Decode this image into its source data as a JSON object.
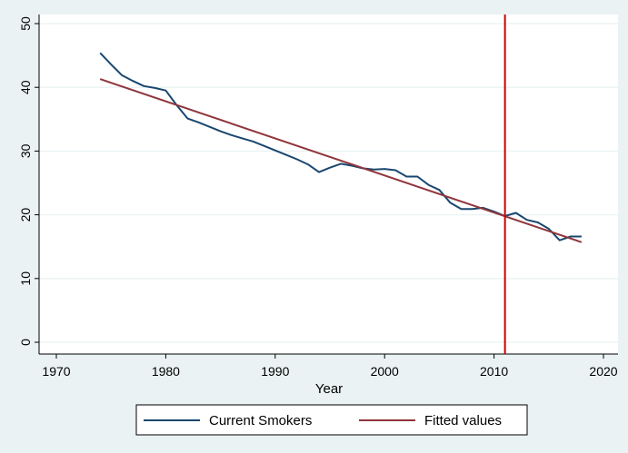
{
  "chart_data": {
    "type": "line",
    "xlabel": "Year",
    "ylabel": "",
    "xlim": [
      1970,
      2020
    ],
    "ylim": [
      0,
      50
    ],
    "xticks": [
      1970,
      1980,
      1990,
      2000,
      2010,
      2020
    ],
    "yticks": [
      0,
      10,
      20,
      30,
      40,
      50
    ],
    "grid": true,
    "legend_position": "bottom",
    "vline": {
      "x": 2011,
      "color": "#cc0000"
    },
    "series": [
      {
        "name": "Current Smokers",
        "color": "#1a476f",
        "x": [
          1974,
          1975,
          1976,
          1977,
          1978,
          1979,
          1980,
          1981,
          1982,
          1983,
          1984,
          1985,
          1986,
          1987,
          1988,
          1989,
          1990,
          1991,
          1992,
          1993,
          1994,
          1995,
          1996,
          1997,
          1998,
          1999,
          2000,
          2001,
          2002,
          2003,
          2004,
          2005,
          2006,
          2007,
          2008,
          2009,
          2010,
          2011,
          2012,
          2013,
          2014,
          2015,
          2016,
          2017,
          2018
        ],
        "values": [
          45.4,
          43.6,
          41.9,
          41.0,
          40.2,
          39.9,
          39.5,
          37.2,
          35.1,
          34.5,
          33.8,
          33.1,
          32.5,
          32.0,
          31.5,
          30.8,
          30.1,
          29.4,
          28.7,
          27.9,
          26.7,
          27.4,
          28.0,
          27.7,
          27.3,
          27.1,
          27.2,
          27.0,
          26.0,
          26.0,
          24.7,
          23.9,
          21.9,
          20.9,
          20.9,
          21.1,
          20.5,
          19.8,
          20.3,
          19.2,
          18.8,
          17.8,
          16.0,
          16.6,
          16.6
        ]
      },
      {
        "name": "Fitted values",
        "color": "#90353b",
        "x": [
          1974,
          2018
        ],
        "values": [
          41.3,
          15.7
        ]
      }
    ]
  }
}
